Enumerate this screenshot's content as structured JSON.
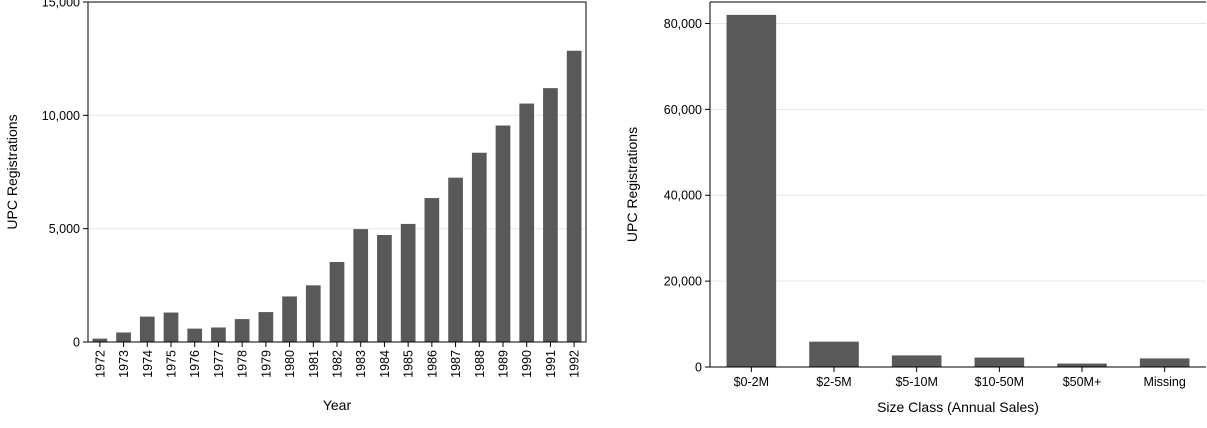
{
  "chart_data": [
    {
      "type": "bar",
      "categories": [
        "1972",
        "1973",
        "1974",
        "1975",
        "1976",
        "1977",
        "1978",
        "1979",
        "1980",
        "1981",
        "1982",
        "1983",
        "1984",
        "1985",
        "1986",
        "1987",
        "1988",
        "1989",
        "1990",
        "1991",
        "1992"
      ],
      "values": [
        150,
        420,
        1120,
        1300,
        590,
        640,
        1010,
        1320,
        2010,
        2500,
        3530,
        4980,
        4720,
        5210,
        6350,
        7250,
        8350,
        9550,
        10520,
        11200,
        12850
      ],
      "xlabel": "Year",
      "ylabel": "UPC Registrations",
      "ylim": [
        0,
        15000
      ],
      "yticks": [
        0,
        5000,
        10000,
        15000
      ],
      "ytick_labels": [
        "0",
        "5,000",
        "10,000",
        "15,000"
      ],
      "grid": true,
      "x_tick_rotation": "vertical"
    },
    {
      "type": "bar",
      "categories": [
        "$0-2M",
        "$2-5M",
        "$5-10M",
        "$10-50M",
        "$50M+",
        "Missing"
      ],
      "values": [
        82000,
        5900,
        2700,
        2200,
        800,
        2000
      ],
      "xlabel": "Size Class (Annual Sales)",
      "ylabel": "UPC Registrations",
      "ylim": [
        0,
        85000
      ],
      "yticks": [
        0,
        20000,
        40000,
        60000,
        80000
      ],
      "ytick_labels": [
        "0",
        "20,000",
        "40,000",
        "60,000",
        "80,000"
      ],
      "grid": true,
      "x_tick_rotation": "horizontal"
    }
  ]
}
